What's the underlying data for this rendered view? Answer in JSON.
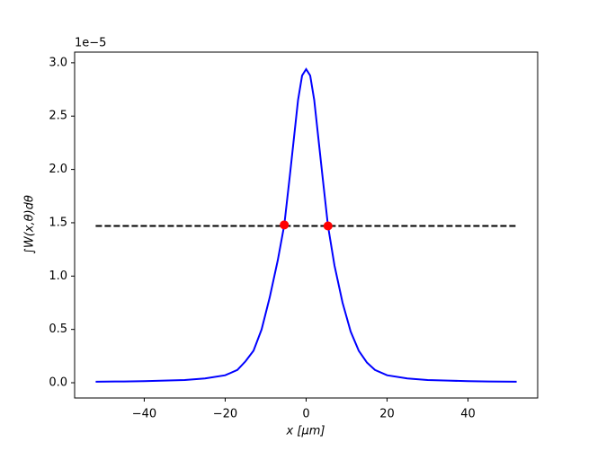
{
  "chart_data": {
    "type": "line",
    "xlabel": "x  [μm]",
    "ylabel": "∫W(x,θ)dθ",
    "y_offset_label": "1e−5",
    "xlim": [
      -57.2,
      57.2
    ],
    "ylim": [
      -0.143,
      3.1
    ],
    "xticks": [
      {
        "value": -40,
        "label": "−40"
      },
      {
        "value": -20,
        "label": "−20"
      },
      0,
      20,
      40
    ],
    "yticks": [
      {
        "value": 0,
        "label": "0.0"
      },
      {
        "value": 0.5,
        "label": "0.5"
      },
      {
        "value": 1,
        "label": "1.0"
      },
      {
        "value": 1.5,
        "label": "1.5"
      },
      {
        "value": 2,
        "label": "2.0"
      },
      {
        "value": 2.5,
        "label": "2.5"
      },
      {
        "value": 3,
        "label": "3.0"
      }
    ],
    "grid": false,
    "series": [
      {
        "color": "#0000ff",
        "style": "solid",
        "x": [
          -52,
          -45,
          -40,
          -35,
          -30,
          -25,
          -20,
          -17,
          -15,
          -13,
          -11,
          -9,
          -7,
          -5.4,
          -4,
          -3,
          -2,
          -1,
          0,
          1,
          2,
          3,
          4,
          5.4,
          7,
          9,
          11,
          13,
          15,
          17,
          20,
          25,
          30,
          35,
          40,
          45,
          52
        ],
        "values": [
          0.01,
          0.012,
          0.015,
          0.02,
          0.025,
          0.04,
          0.07,
          0.12,
          0.2,
          0.3,
          0.5,
          0.8,
          1.15,
          1.48,
          1.95,
          2.3,
          2.65,
          2.88,
          2.94,
          2.88,
          2.65,
          2.3,
          1.95,
          1.47,
          1.1,
          0.75,
          0.48,
          0.3,
          0.19,
          0.12,
          0.07,
          0.04,
          0.025,
          0.02,
          0.015,
          0.012,
          0.01
        ]
      },
      {
        "color": "#000000",
        "style": "dashed",
        "x": [
          -52,
          52
        ],
        "values": [
          1.47,
          1.47
        ]
      },
      {
        "color": "#ff0000",
        "style": "markers",
        "x": [
          -5.4,
          5.4
        ],
        "values": [
          1.48,
          1.47
        ]
      }
    ]
  }
}
